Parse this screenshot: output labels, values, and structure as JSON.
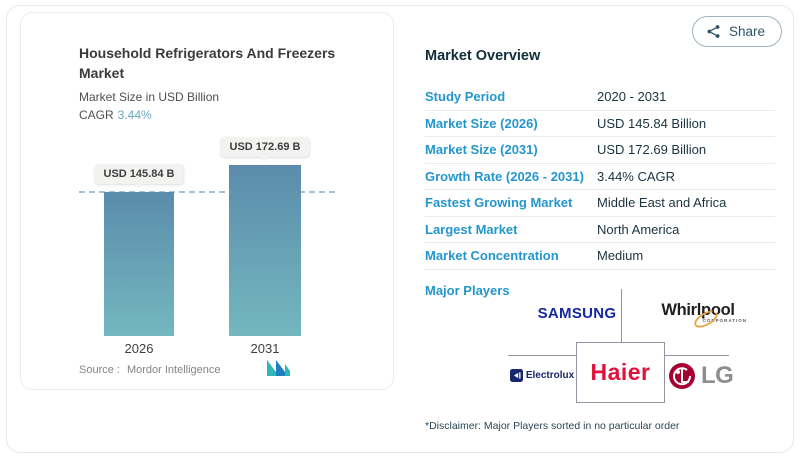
{
  "share": {
    "label": "Share"
  },
  "chart_card": {
    "title": "Household Refrigerators And Freezers Market",
    "subtitle": "Market Size in USD Billion",
    "cagr_label": "CAGR",
    "cagr_value": "3.44%",
    "source_label": "Source :",
    "source_value": "Mordor Intelligence"
  },
  "chart_data": {
    "type": "bar",
    "title": "Household Refrigerators And Freezers Market",
    "ylabel": "Market Size in USD Billion",
    "categories": [
      "2026",
      "2031"
    ],
    "values": [
      145.84,
      172.69
    ],
    "value_labels": [
      "USD 145.84 B",
      "USD 172.69 B"
    ],
    "unit": "USD Billion",
    "cagr_pct": 3.44,
    "reference_line": {
      "at_value": 145.84,
      "style": "dashed"
    },
    "grid": false,
    "legend": false,
    "bar_gradient_top": "#5b8cab",
    "bar_gradient_bottom": "#73b7bf"
  },
  "overview": {
    "title": "Market Overview",
    "rows": [
      {
        "label": "Study Period",
        "value": "2020 - 2031"
      },
      {
        "label": "Market Size (2026)",
        "value": "USD 145.84 Billion"
      },
      {
        "label": "Market Size (2031)",
        "value": "USD 172.69 Billion"
      },
      {
        "label": "Growth Rate (2026 - 2031)",
        "value": "3.44% CAGR"
      },
      {
        "label": "Fastest Growing Market",
        "value": "Middle East and Africa"
      },
      {
        "label": "Largest Market",
        "value": "North America"
      },
      {
        "label": "Market Concentration",
        "value": "Medium"
      }
    ],
    "major_players_label": "Major Players",
    "disclaimer": "*Disclaimer: Major Players sorted in no particular order"
  },
  "players": {
    "samsung": "SAMSUNG",
    "whirlpool": "Whirlpool",
    "whirlpool_sub": "CORPORATION",
    "electrolux": "Electrolux",
    "haier": "Haier",
    "lg": "LG"
  },
  "colors": {
    "accent_blue": "#2496cd",
    "dark_navy": "#1b3340",
    "cagr_blue": "#6ea7c3",
    "dashed_line": "#a4c2d4",
    "bar_top": "#5b8cab",
    "bar_bottom": "#73b7bf",
    "samsung_blue": "#1428a0",
    "whirlpool_gold": "#e8a33d",
    "electrolux_navy": "#18266e",
    "haier_red": "#e0113a",
    "lg_magenta": "#a50034",
    "lg_grey": "#8e8e8e",
    "mordor_teal": "#2fb6b9",
    "mordor_blue": "#1f7fc2"
  }
}
